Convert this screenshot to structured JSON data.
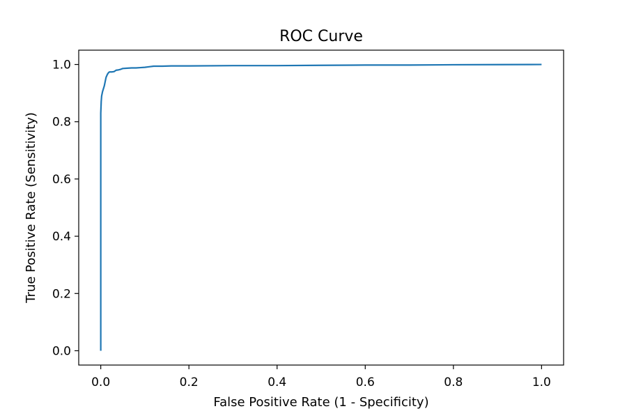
{
  "chart_data": {
    "type": "line",
    "title": "ROC Curve",
    "xlabel": "False Positive Rate (1 - Specificity)",
    "ylabel": "True Positive Rate (Sensitivity)",
    "xlim": [
      -0.05,
      1.05
    ],
    "ylim": [
      -0.05,
      1.05
    ],
    "xticks": [
      0.0,
      0.2,
      0.4,
      0.6,
      0.8,
      1.0
    ],
    "xtick_labels": [
      "0.0",
      "0.2",
      "0.4",
      "0.6",
      "0.8",
      "1.0"
    ],
    "yticks": [
      0.0,
      0.2,
      0.4,
      0.6,
      0.8,
      1.0
    ],
    "ytick_labels": [
      "0.0",
      "0.2",
      "0.4",
      "0.6",
      "0.8",
      "1.0"
    ],
    "grid": false,
    "series": [
      {
        "color": "#1f77b4",
        "x": [
          0.0,
          0.0,
          0.001,
          0.002,
          0.004,
          0.006,
          0.008,
          0.01,
          0.012,
          0.014,
          0.016,
          0.018,
          0.02,
          0.025,
          0.03,
          0.035,
          0.04,
          0.045,
          0.05,
          0.06,
          0.07,
          0.08,
          0.09,
          0.1,
          0.11,
          0.12,
          0.14,
          0.16,
          0.2,
          0.3,
          0.4,
          0.5,
          0.6,
          0.7,
          0.8,
          0.9,
          1.0
        ],
        "y": [
          0.0,
          0.83,
          0.87,
          0.89,
          0.905,
          0.915,
          0.925,
          0.94,
          0.955,
          0.962,
          0.968,
          0.972,
          0.974,
          0.974,
          0.975,
          0.98,
          0.981,
          0.983,
          0.986,
          0.987,
          0.988,
          0.988,
          0.989,
          0.99,
          0.992,
          0.994,
          0.994,
          0.995,
          0.995,
          0.996,
          0.996,
          0.997,
          0.998,
          0.998,
          0.999,
          0.9995,
          1.0
        ]
      }
    ]
  }
}
